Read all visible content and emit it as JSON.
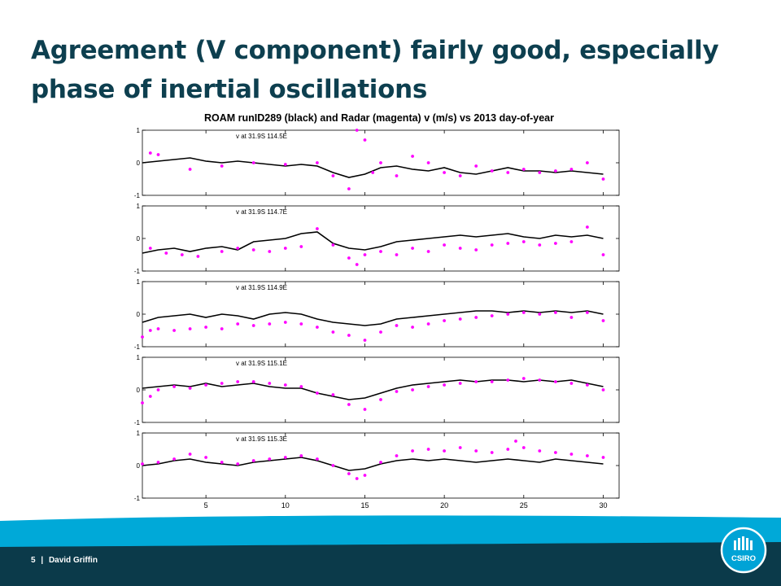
{
  "slide": {
    "title": "Agreement (V component) fairly good, especially phase of inertial oscillations",
    "page_number": "5",
    "separator": "|",
    "author": "David Griffin",
    "logo_text": "CSIRO",
    "colors": {
      "title": "#0d3f4f",
      "footer_dark": "#0b3a4a",
      "footer_light": "#00a9d8",
      "logo": "#00a3d6"
    }
  },
  "chart_data": {
    "type": "line",
    "title": "ROAM runID289 (black) and Radar (magenta) v (m/s) vs 2013 day-of-year",
    "xlabel": "",
    "ylabel": "",
    "xlim": [
      1,
      31
    ],
    "ylim": [
      -1,
      1
    ],
    "x_ticks": [
      5,
      10,
      15,
      20,
      25,
      30
    ],
    "y_ticks": [
      -1,
      0,
      1
    ],
    "grid": false,
    "legend": "none",
    "series_styles": {
      "model": "#000000",
      "radar": "#ff00ff"
    },
    "panels": [
      {
        "label": "v at 31.9S 114.5E",
        "model": {
          "x": [
            1,
            2,
            3,
            4,
            5,
            6,
            7,
            8,
            9,
            10,
            11,
            12,
            13,
            14,
            15,
            16,
            17,
            18,
            19,
            20,
            21,
            22,
            23,
            24,
            25,
            26,
            27,
            28,
            29,
            30
          ],
          "y": [
            0.0,
            0.05,
            0.1,
            0.15,
            0.05,
            0.0,
            0.05,
            0.0,
            -0.05,
            -0.1,
            -0.05,
            -0.1,
            -0.3,
            -0.45,
            -0.35,
            -0.15,
            -0.1,
            -0.2,
            -0.25,
            -0.15,
            -0.3,
            -0.35,
            -0.25,
            -0.15,
            -0.25,
            -0.25,
            -0.3,
            -0.25,
            -0.3,
            -0.35
          ]
        },
        "radar": {
          "x": [
            1.5,
            2,
            4,
            6,
            8,
            10,
            12,
            13,
            14,
            14.5,
            15,
            15.5,
            16,
            17,
            18,
            19,
            20,
            21,
            22,
            23,
            24,
            25,
            26,
            27,
            28,
            29,
            30
          ],
          "y": [
            0.3,
            0.25,
            -0.2,
            -0.1,
            0.0,
            -0.05,
            0.0,
            -0.4,
            -0.8,
            1.0,
            0.7,
            -0.3,
            0.0,
            -0.4,
            0.2,
            0.0,
            -0.3,
            -0.4,
            -0.1,
            -0.25,
            -0.3,
            -0.2,
            -0.3,
            -0.25,
            -0.2,
            0.0,
            -0.5
          ]
        }
      },
      {
        "label": "v at 31.9S 114.7E",
        "model": {
          "x": [
            1,
            2,
            3,
            4,
            5,
            6,
            7,
            8,
            9,
            10,
            11,
            12,
            13,
            14,
            15,
            16,
            17,
            18,
            19,
            20,
            21,
            22,
            23,
            24,
            25,
            26,
            27,
            28,
            29,
            30
          ],
          "y": [
            -0.45,
            -0.35,
            -0.3,
            -0.4,
            -0.3,
            -0.25,
            -0.35,
            -0.1,
            -0.05,
            0.0,
            0.15,
            0.2,
            -0.15,
            -0.3,
            -0.35,
            -0.25,
            -0.1,
            -0.05,
            0.0,
            0.05,
            0.1,
            0.05,
            0.1,
            0.15,
            0.05,
            0.0,
            0.1,
            0.05,
            0.1,
            0.0
          ]
        },
        "radar": {
          "x": [
            1.5,
            2.5,
            3.5,
            4.5,
            6,
            7,
            8,
            9,
            10,
            11,
            12,
            13,
            14,
            14.5,
            15,
            16,
            17,
            18,
            19,
            20,
            21,
            22,
            23,
            24,
            25,
            26,
            27,
            28,
            29,
            30
          ],
          "y": [
            -0.3,
            -0.45,
            -0.5,
            -0.55,
            -0.4,
            -0.3,
            -0.35,
            -0.4,
            -0.3,
            -0.25,
            0.3,
            -0.2,
            -0.6,
            -0.8,
            -0.5,
            -0.4,
            -0.5,
            -0.3,
            -0.4,
            -0.2,
            -0.3,
            -0.35,
            -0.2,
            -0.15,
            -0.1,
            -0.2,
            -0.15,
            -0.1,
            0.35,
            -0.5
          ]
        }
      },
      {
        "label": "v at 31.9S 114.9E",
        "model": {
          "x": [
            1,
            2,
            3,
            4,
            5,
            6,
            7,
            8,
            9,
            10,
            11,
            12,
            13,
            14,
            15,
            16,
            17,
            18,
            19,
            20,
            21,
            22,
            23,
            24,
            25,
            26,
            27,
            28,
            29,
            30
          ],
          "y": [
            -0.25,
            -0.1,
            -0.05,
            0.0,
            -0.1,
            0.0,
            -0.05,
            -0.15,
            0.0,
            0.05,
            0.0,
            -0.15,
            -0.25,
            -0.3,
            -0.35,
            -0.3,
            -0.15,
            -0.1,
            -0.05,
            0.0,
            0.05,
            0.1,
            0.1,
            0.05,
            0.1,
            0.05,
            0.1,
            0.05,
            0.1,
            0.0
          ]
        },
        "radar": {
          "x": [
            1,
            1.5,
            2,
            3,
            4,
            5,
            6,
            7,
            8,
            9,
            10,
            11,
            12,
            13,
            14,
            15,
            16,
            17,
            18,
            19,
            20,
            21,
            22,
            23,
            24,
            25,
            26,
            27,
            28,
            29,
            30
          ],
          "y": [
            -0.7,
            -0.5,
            -0.45,
            -0.5,
            -0.45,
            -0.4,
            -0.45,
            -0.3,
            -0.35,
            -0.3,
            -0.25,
            -0.3,
            -0.4,
            -0.55,
            -0.65,
            -0.8,
            -0.55,
            -0.35,
            -0.4,
            -0.3,
            -0.2,
            -0.15,
            -0.1,
            -0.05,
            0.0,
            0.05,
            0.0,
            0.05,
            -0.1,
            0.05,
            -0.2
          ]
        }
      },
      {
        "label": "v at 31.9S 115.1E",
        "model": {
          "x": [
            1,
            2,
            3,
            4,
            5,
            6,
            7,
            8,
            9,
            10,
            11,
            12,
            13,
            14,
            15,
            16,
            17,
            18,
            19,
            20,
            21,
            22,
            23,
            24,
            25,
            26,
            27,
            28,
            29,
            30
          ],
          "y": [
            0.05,
            0.1,
            0.15,
            0.1,
            0.2,
            0.1,
            0.15,
            0.2,
            0.1,
            0.05,
            0.05,
            -0.1,
            -0.2,
            -0.3,
            -0.25,
            -0.1,
            0.05,
            0.15,
            0.2,
            0.25,
            0.3,
            0.25,
            0.3,
            0.3,
            0.25,
            0.3,
            0.25,
            0.3,
            0.2,
            0.1
          ]
        },
        "radar": {
          "x": [
            1,
            1.5,
            2,
            3,
            4,
            5,
            6,
            7,
            8,
            9,
            10,
            11,
            12,
            13,
            14,
            15,
            16,
            17,
            18,
            19,
            20,
            21,
            22,
            23,
            24,
            25,
            26,
            27,
            28,
            29,
            30
          ],
          "y": [
            -0.4,
            -0.2,
            0.0,
            0.1,
            0.05,
            0.15,
            0.2,
            0.25,
            0.25,
            0.2,
            0.15,
            0.1,
            -0.1,
            -0.15,
            -0.45,
            -0.6,
            -0.3,
            -0.05,
            0.0,
            0.1,
            0.15,
            0.2,
            0.25,
            0.25,
            0.3,
            0.35,
            0.3,
            0.25,
            0.2,
            0.15,
            0.0
          ]
        }
      },
      {
        "label": "v at 31.9S 115.3E",
        "model": {
          "x": [
            1,
            2,
            3,
            4,
            5,
            6,
            7,
            8,
            9,
            10,
            11,
            12,
            13,
            14,
            15,
            16,
            17,
            18,
            19,
            20,
            21,
            22,
            23,
            24,
            25,
            26,
            27,
            28,
            29,
            30
          ],
          "y": [
            0.0,
            0.05,
            0.15,
            0.2,
            0.1,
            0.05,
            0.0,
            0.1,
            0.15,
            0.2,
            0.25,
            0.15,
            0.0,
            -0.15,
            -0.1,
            0.05,
            0.15,
            0.2,
            0.15,
            0.2,
            0.15,
            0.1,
            0.15,
            0.2,
            0.15,
            0.1,
            0.2,
            0.15,
            0.1,
            0.05
          ]
        },
        "radar": {
          "x": [
            1,
            2,
            3,
            4,
            5,
            6,
            7,
            8,
            9,
            10,
            11,
            12,
            13,
            14,
            14.5,
            15,
            16,
            17,
            18,
            19,
            20,
            21,
            22,
            23,
            24,
            24.5,
            25,
            26,
            27,
            28,
            29,
            30
          ],
          "y": [
            0.05,
            0.1,
            0.2,
            0.35,
            0.25,
            0.1,
            0.05,
            0.15,
            0.2,
            0.25,
            0.3,
            0.2,
            0.0,
            -0.25,
            -0.4,
            -0.3,
            0.1,
            0.3,
            0.45,
            0.5,
            0.45,
            0.55,
            0.45,
            0.4,
            0.5,
            0.75,
            0.55,
            0.45,
            0.4,
            0.35,
            0.3,
            0.25
          ]
        }
      }
    ]
  }
}
